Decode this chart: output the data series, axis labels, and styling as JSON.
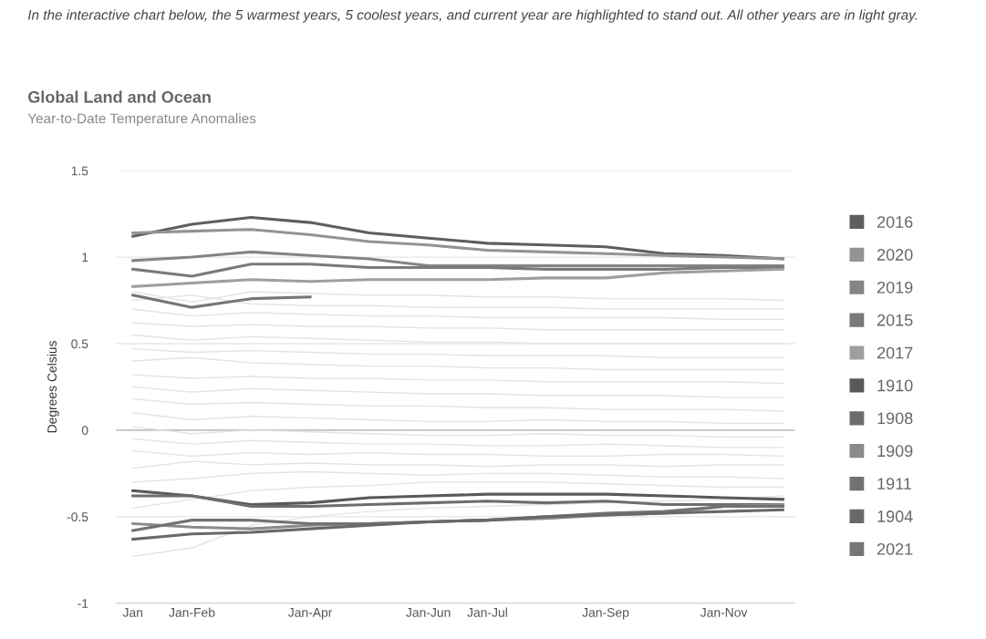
{
  "chart_data": {
    "type": "line",
    "annotations": [
      "In the interactive chart below, the 5 warmest years, 5 coolest years, and current year are highlighted to stand out. All other years are in light gray."
    ],
    "title": "Global Land and Ocean",
    "subtitle": "Year-to-Date Temperature Anomalies",
    "ylabel": "Degrees Celsius",
    "categories": [
      "Jan",
      "Jan-Feb",
      null,
      "Jan-Apr",
      null,
      "Jan-Jun",
      "Jan-Jul",
      null,
      "Jan-Sep",
      null,
      "Jan-Nov",
      null
    ],
    "ylim": [
      -1,
      1.5
    ],
    "yticks": [
      -1,
      -0.5,
      0,
      0.5,
      1,
      1.5
    ],
    "grid": "y",
    "legend": "right",
    "marker": "none",
    "line_style": "solid",
    "ref_lines": [
      {
        "axis": "y",
        "value": 0,
        "color": "#b0b0b0"
      }
    ],
    "series": [
      {
        "color": "#e3e3e3",
        "values": [
          -0.73,
          -0.68,
          -0.55,
          -0.5,
          -0.47,
          -0.45,
          -0.44,
          -0.43,
          -0.42,
          -0.41,
          -0.4,
          -0.38
        ]
      },
      {
        "color": "#e3e3e3",
        "values": [
          -0.45,
          -0.4,
          -0.35,
          -0.33,
          -0.32,
          -0.3,
          -0.3,
          -0.3,
          -0.31,
          -0.32,
          -0.33,
          -0.33
        ]
      },
      {
        "color": "#e3e3e3",
        "values": [
          -0.3,
          -0.28,
          -0.25,
          -0.24,
          -0.25,
          -0.26,
          -0.25,
          -0.25,
          -0.26,
          -0.27,
          -0.27,
          -0.28
        ]
      },
      {
        "color": "#e3e3e3",
        "values": [
          -0.22,
          -0.18,
          -0.2,
          -0.19,
          -0.2,
          -0.2,
          -0.21,
          -0.2,
          -0.2,
          -0.21,
          -0.2,
          -0.2
        ]
      },
      {
        "color": "#e3e3e3",
        "values": [
          -0.12,
          -0.15,
          -0.13,
          -0.14,
          -0.13,
          -0.14,
          -0.14,
          -0.15,
          -0.15,
          -0.14,
          -0.14,
          -0.15
        ]
      },
      {
        "color": "#e3e3e3",
        "values": [
          -0.05,
          -0.08,
          -0.06,
          -0.07,
          -0.08,
          -0.08,
          -0.09,
          -0.09,
          -0.08,
          -0.09,
          -0.1,
          -0.1
        ]
      },
      {
        "color": "#e3e3e3",
        "values": [
          0.02,
          -0.02,
          0.0,
          -0.01,
          -0.02,
          -0.03,
          -0.03,
          -0.02,
          -0.03,
          -0.03,
          -0.04,
          -0.04
        ]
      },
      {
        "color": "#e3e3e3",
        "values": [
          0.1,
          0.06,
          0.08,
          0.07,
          0.06,
          0.05,
          0.05,
          0.06,
          0.05,
          0.05,
          0.04,
          0.04
        ]
      },
      {
        "color": "#e3e3e3",
        "values": [
          0.18,
          0.15,
          0.16,
          0.15,
          0.14,
          0.14,
          0.13,
          0.13,
          0.12,
          0.12,
          0.12,
          0.11
        ]
      },
      {
        "color": "#e3e3e3",
        "values": [
          0.25,
          0.22,
          0.24,
          0.23,
          0.22,
          0.21,
          0.21,
          0.2,
          0.2,
          0.2,
          0.19,
          0.19
        ]
      },
      {
        "color": "#e3e3e3",
        "values": [
          0.32,
          0.3,
          0.31,
          0.3,
          0.3,
          0.29,
          0.29,
          0.28,
          0.28,
          0.28,
          0.28,
          0.27
        ]
      },
      {
        "color": "#e3e3e3",
        "values": [
          0.4,
          0.42,
          0.39,
          0.38,
          0.37,
          0.37,
          0.36,
          0.36,
          0.35,
          0.35,
          0.35,
          0.35
        ]
      },
      {
        "color": "#e3e3e3",
        "values": [
          0.47,
          0.45,
          0.46,
          0.45,
          0.44,
          0.44,
          0.43,
          0.43,
          0.43,
          0.42,
          0.42,
          0.42
        ]
      },
      {
        "color": "#e3e3e3",
        "values": [
          0.55,
          0.52,
          0.54,
          0.53,
          0.52,
          0.51,
          0.51,
          0.5,
          0.5,
          0.5,
          0.5,
          0.5
        ]
      },
      {
        "color": "#e3e3e3",
        "values": [
          0.62,
          0.6,
          0.61,
          0.6,
          0.6,
          0.59,
          0.59,
          0.58,
          0.58,
          0.58,
          0.58,
          0.58
        ]
      },
      {
        "color": "#e3e3e3",
        "values": [
          0.7,
          0.66,
          0.68,
          0.67,
          0.66,
          0.66,
          0.65,
          0.65,
          0.65,
          0.65,
          0.64,
          0.64
        ]
      },
      {
        "color": "#e3e3e3",
        "values": [
          0.75,
          0.78,
          0.73,
          0.72,
          0.72,
          0.71,
          0.71,
          0.71,
          0.7,
          0.7,
          0.7,
          0.7
        ]
      },
      {
        "color": "#e3e3e3",
        "values": [
          0.8,
          0.74,
          0.8,
          0.79,
          0.78,
          0.78,
          0.77,
          0.77,
          0.76,
          0.76,
          0.76,
          0.75
        ]
      },
      {
        "name": "2016",
        "color": "#5e5e5e",
        "values": [
          1.12,
          1.19,
          1.23,
          1.2,
          1.14,
          1.11,
          1.08,
          1.07,
          1.06,
          1.02,
          1.01,
          0.99
        ]
      },
      {
        "name": "2020",
        "color": "#939393",
        "values": [
          1.14,
          1.15,
          1.16,
          1.13,
          1.09,
          1.07,
          1.04,
          1.03,
          1.02,
          1.01,
          1.0,
          0.99
        ]
      },
      {
        "name": "2019",
        "color": "#848484",
        "values": [
          0.98,
          1.0,
          1.03,
          1.01,
          0.99,
          0.95,
          0.95,
          0.95,
          0.95,
          0.95,
          0.95,
          0.95
        ]
      },
      {
        "name": "2015",
        "color": "#7a7a7a",
        "values": [
          0.93,
          0.89,
          0.96,
          0.96,
          0.94,
          0.94,
          0.94,
          0.93,
          0.93,
          0.93,
          0.94,
          0.94
        ]
      },
      {
        "name": "2017",
        "color": "#9e9e9e",
        "values": [
          0.83,
          0.85,
          0.87,
          0.86,
          0.87,
          0.87,
          0.87,
          0.88,
          0.88,
          0.91,
          0.92,
          0.93
        ]
      },
      {
        "name": "1910",
        "color": "#595959",
        "values": [
          -0.35,
          -0.38,
          -0.43,
          -0.42,
          -0.39,
          -0.38,
          -0.37,
          -0.37,
          -0.37,
          -0.38,
          -0.39,
          -0.4
        ]
      },
      {
        "name": "1908",
        "color": "#6d6d6d",
        "values": [
          -0.38,
          -0.38,
          -0.44,
          -0.44,
          -0.43,
          -0.42,
          -0.41,
          -0.42,
          -0.41,
          -0.43,
          -0.43,
          -0.43
        ]
      },
      {
        "name": "1909",
        "color": "#8a8a8a",
        "values": [
          -0.54,
          -0.56,
          -0.57,
          -0.55,
          -0.54,
          -0.53,
          -0.52,
          -0.51,
          -0.49,
          -0.48,
          -0.44,
          -0.43
        ]
      },
      {
        "name": "1911",
        "color": "#727272",
        "values": [
          -0.58,
          -0.52,
          -0.52,
          -0.54,
          -0.54,
          -0.53,
          -0.52,
          -0.5,
          -0.48,
          -0.47,
          -0.44,
          -0.44
        ]
      },
      {
        "name": "1904",
        "color": "#686868",
        "values": [
          -0.63,
          -0.6,
          -0.59,
          -0.57,
          -0.55,
          -0.53,
          -0.52,
          -0.5,
          -0.49,
          -0.48,
          -0.47,
          -0.46
        ]
      },
      {
        "name": "2021",
        "color": "#767676",
        "values": [
          0.78,
          0.71,
          0.76,
          0.77,
          null,
          null,
          null,
          null,
          null,
          null,
          null,
          null
        ]
      }
    ]
  }
}
